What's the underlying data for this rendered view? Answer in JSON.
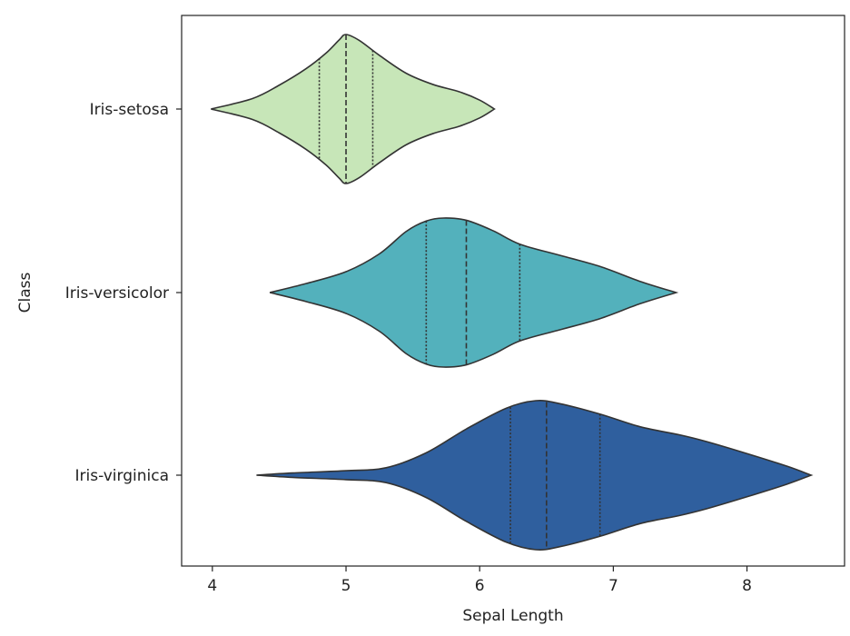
{
  "chart_data": {
    "type": "violin",
    "orientation": "horizontal",
    "title": "",
    "xlabel": "Sepal Length",
    "ylabel": "Class",
    "xlim": [
      3.77,
      8.73
    ],
    "xticks": [
      4,
      5,
      6,
      7,
      8
    ],
    "categories": [
      "Iris-setosa",
      "Iris-versicolor",
      "Iris-virginica"
    ],
    "grid": false,
    "legend": "none",
    "inner": "quartile",
    "series": [
      {
        "name": "Iris-setosa",
        "color": "#c7e6b8",
        "quartiles": [
          4.8,
          5.0,
          5.2
        ],
        "profile": [
          [
            3.99,
            0.0
          ],
          [
            4.3,
            0.14
          ],
          [
            4.5,
            0.32
          ],
          [
            4.7,
            0.54
          ],
          [
            4.85,
            0.75
          ],
          [
            4.95,
            0.93
          ],
          [
            5.0,
            1.0
          ],
          [
            5.1,
            0.92
          ],
          [
            5.25,
            0.72
          ],
          [
            5.45,
            0.48
          ],
          [
            5.65,
            0.33
          ],
          [
            5.85,
            0.23
          ],
          [
            6.0,
            0.12
          ],
          [
            6.11,
            0.0
          ]
        ]
      },
      {
        "name": "Iris-versicolor",
        "color": "#53b1bc",
        "quartiles": [
          5.6,
          5.9,
          6.3
        ],
        "profile": [
          [
            4.43,
            0.0
          ],
          [
            4.7,
            0.12
          ],
          [
            5.0,
            0.28
          ],
          [
            5.25,
            0.52
          ],
          [
            5.45,
            0.82
          ],
          [
            5.6,
            0.96
          ],
          [
            5.73,
            1.0
          ],
          [
            5.9,
            0.97
          ],
          [
            6.1,
            0.83
          ],
          [
            6.3,
            0.65
          ],
          [
            6.6,
            0.5
          ],
          [
            6.9,
            0.35
          ],
          [
            7.2,
            0.15
          ],
          [
            7.47,
            0.0
          ]
        ]
      },
      {
        "name": "Iris-virginica",
        "color": "#2f5f9e",
        "quartiles": [
          6.23,
          6.5,
          6.9
        ],
        "profile": [
          [
            4.33,
            0.0
          ],
          [
            4.6,
            0.03
          ],
          [
            5.0,
            0.06
          ],
          [
            5.3,
            0.1
          ],
          [
            5.6,
            0.3
          ],
          [
            5.9,
            0.62
          ],
          [
            6.2,
            0.9
          ],
          [
            6.42,
            1.0
          ],
          [
            6.6,
            0.96
          ],
          [
            6.9,
            0.82
          ],
          [
            7.2,
            0.65
          ],
          [
            7.5,
            0.54
          ],
          [
            7.7,
            0.45
          ],
          [
            8.0,
            0.29
          ],
          [
            8.3,
            0.12
          ],
          [
            8.48,
            0.0
          ]
        ]
      }
    ]
  }
}
